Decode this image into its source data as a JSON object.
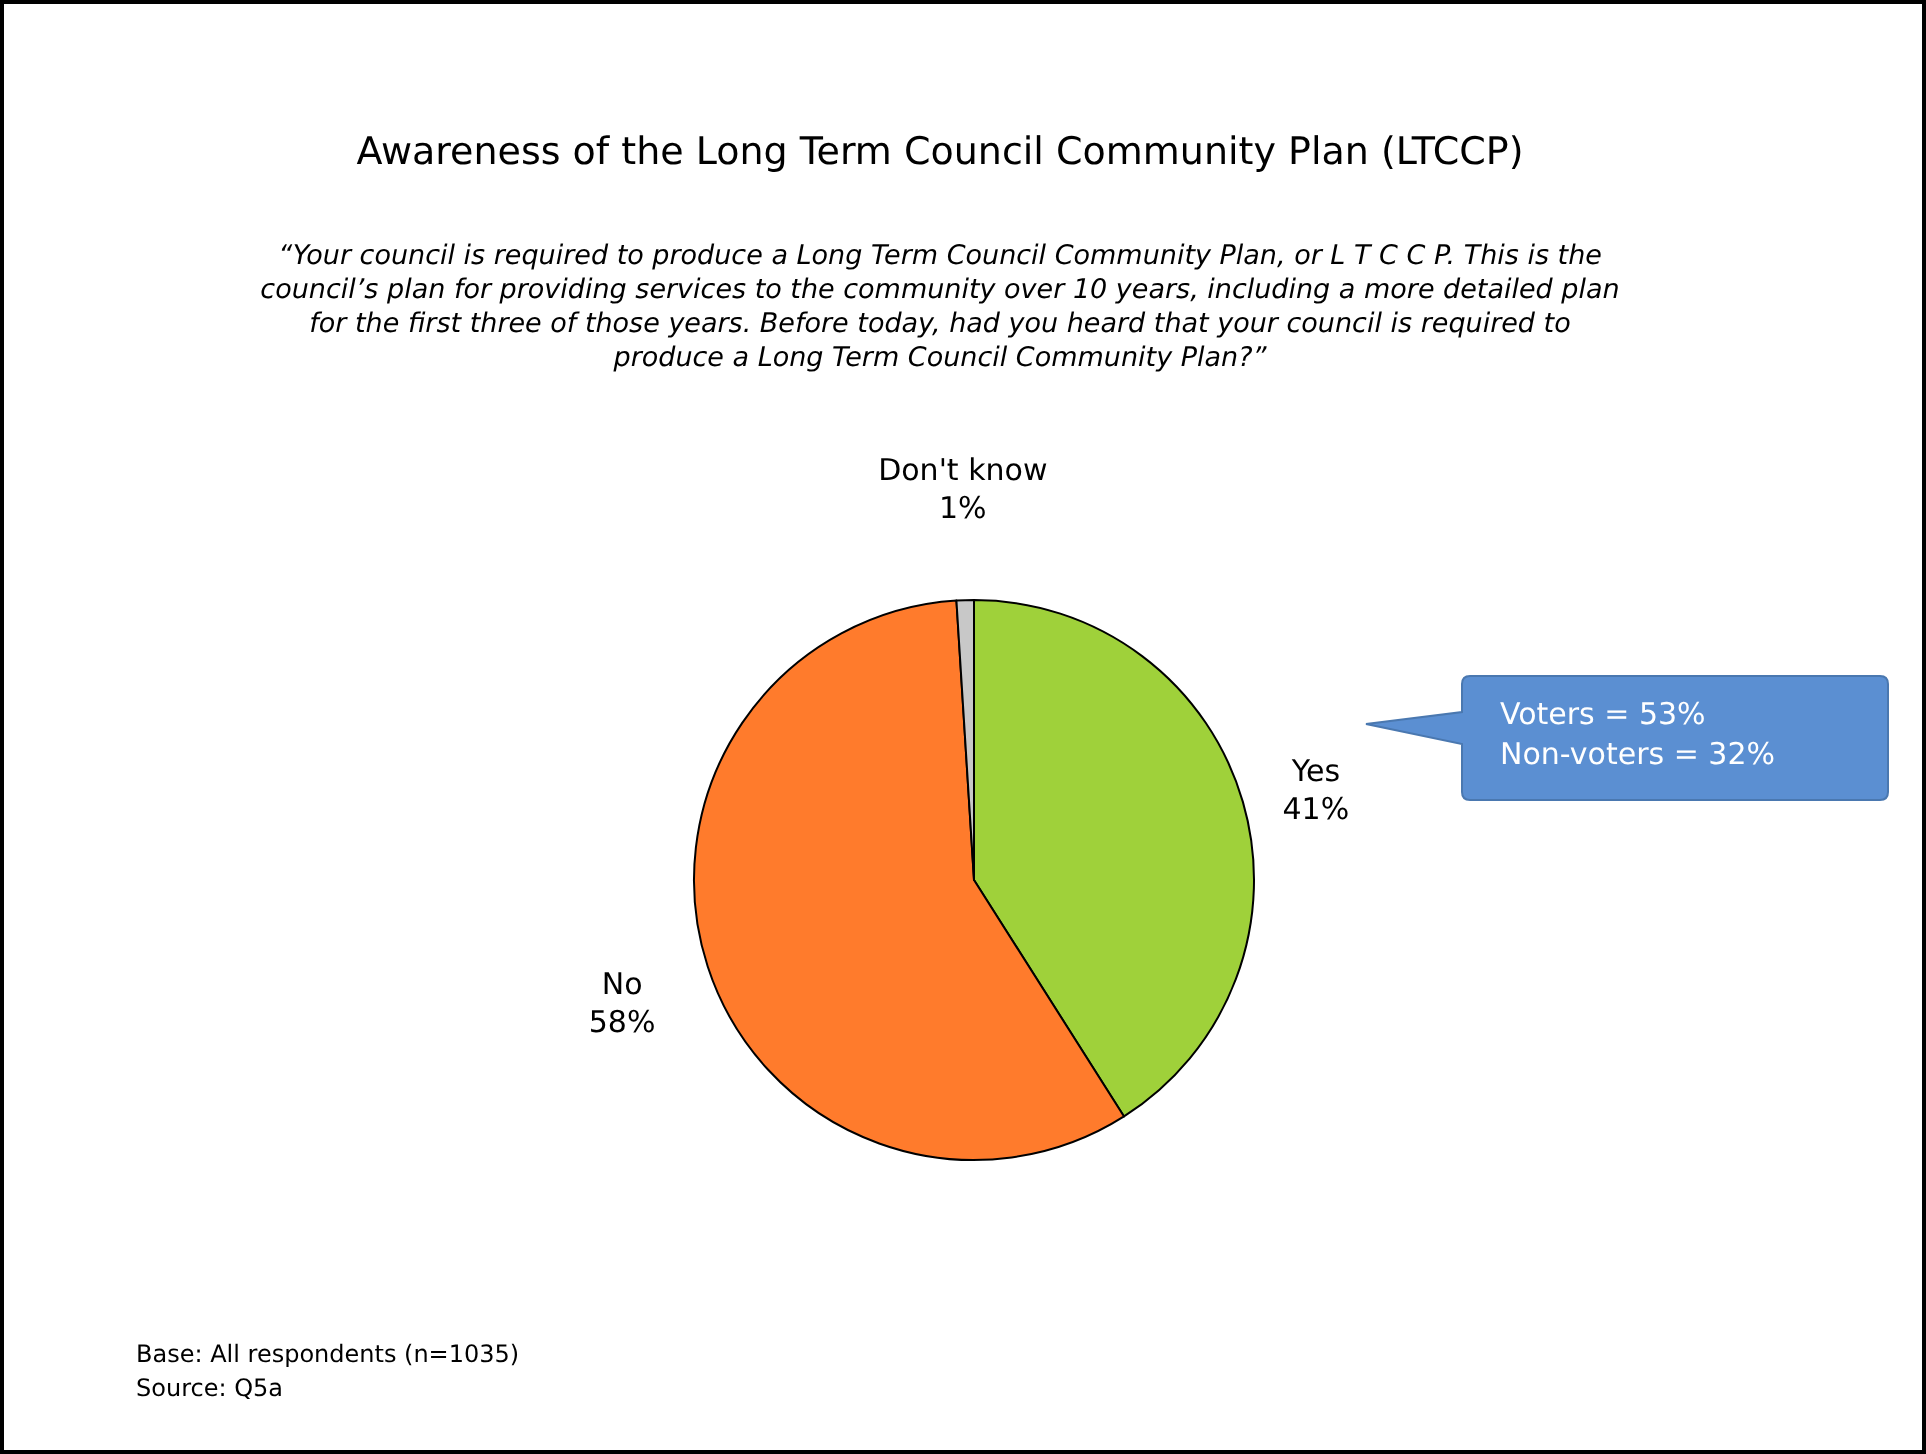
{
  "chart_data": {
    "type": "pie",
    "title": "Awareness of the Long Term Council Community Plan (LTCCP)",
    "subtitle": "“Your council is required to produce a Long Term Council Community Plan, or L T C C P. This is the council’s plan for providing services to the community over 10 years, including a more detailed plan for the first three of those years. Before today, had you heard that your council is required to produce a Long Term Council Community Plan?”",
    "categories": [
      "Yes",
      "No",
      "Don't know"
    ],
    "values": [
      41,
      58,
      1
    ],
    "colors": [
      "#9fd13a",
      "#ff7b2c",
      "#c8c8c8"
    ],
    "value_labels": [
      "41%",
      "58%",
      "1%"
    ],
    "annotations": [
      "Voters = 53%",
      "Non-voters = 32%",
      "Base: All respondents (n=1035)",
      "Source: Q5a"
    ]
  }
}
